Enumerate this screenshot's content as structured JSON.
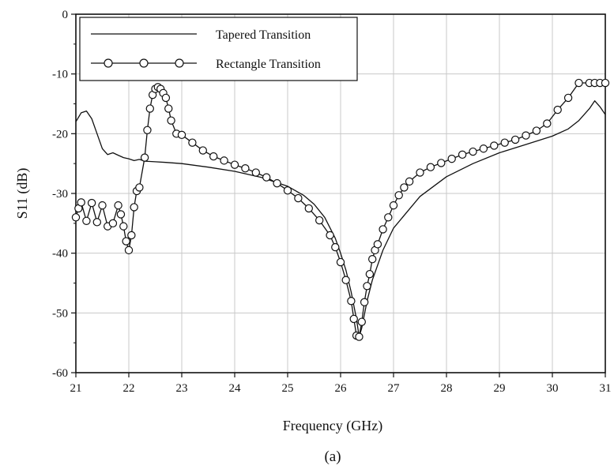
{
  "chart_data": {
    "type": "line",
    "xlabel": "Frequency (GHz)",
    "ylabel": "S11 (dB)",
    "caption": "(a)",
    "xlim": [
      21,
      31
    ],
    "ylim": [
      -60,
      0
    ],
    "xticks": [
      21,
      22,
      23,
      24,
      25,
      26,
      27,
      28,
      29,
      30,
      31
    ],
    "yticks": [
      0,
      -10,
      -20,
      -30,
      -40,
      -50,
      -60
    ],
    "grid": true,
    "legend": "top-left",
    "series": [
      {
        "name": "Tapered Transition",
        "marker": "none",
        "x": [
          21.0,
          21.1,
          21.2,
          21.3,
          21.4,
          21.5,
          21.6,
          21.7,
          21.8,
          21.9,
          22.0,
          22.1,
          22.2,
          22.3,
          22.5,
          22.7,
          23.0,
          23.5,
          24.0,
          24.5,
          25.0,
          25.3,
          25.5,
          25.7,
          25.9,
          26.0,
          26.1,
          26.2,
          26.3,
          26.35,
          26.4,
          26.5,
          26.6,
          26.8,
          27.0,
          27.5,
          28.0,
          28.5,
          29.0,
          29.5,
          30.0,
          30.3,
          30.5,
          30.7,
          30.8,
          30.9,
          31.0
        ],
        "y": [
          -18.0,
          -16.5,
          -16.2,
          -17.5,
          -20.0,
          -22.5,
          -23.5,
          -23.2,
          -23.6,
          -24.0,
          -24.2,
          -24.5,
          -24.3,
          -24.6,
          -24.7,
          -24.8,
          -25.0,
          -25.6,
          -26.3,
          -27.3,
          -28.8,
          -30.3,
          -31.8,
          -34.0,
          -37.5,
          -40.0,
          -42.8,
          -46.5,
          -51.0,
          -54.0,
          -52.5,
          -48.0,
          -44.5,
          -39.5,
          -35.8,
          -30.5,
          -27.2,
          -25.0,
          -23.2,
          -21.8,
          -20.4,
          -19.2,
          -17.8,
          -15.8,
          -14.5,
          -15.5,
          -16.8
        ]
      },
      {
        "name": "Rectangle Transition",
        "marker": "circle",
        "x": [
          21.0,
          21.05,
          21.1,
          21.2,
          21.3,
          21.4,
          21.5,
          21.6,
          21.7,
          21.8,
          21.85,
          21.9,
          21.95,
          22.0,
          22.05,
          22.1,
          22.15,
          22.2,
          22.3,
          22.35,
          22.4,
          22.45,
          22.5,
          22.55,
          22.6,
          22.65,
          22.7,
          22.75,
          22.8,
          22.9,
          23.0,
          23.2,
          23.4,
          23.6,
          23.8,
          24.0,
          24.2,
          24.4,
          24.6,
          24.8,
          25.0,
          25.2,
          25.4,
          25.6,
          25.8,
          25.9,
          26.0,
          26.1,
          26.2,
          26.25,
          26.3,
          26.35,
          26.4,
          26.45,
          26.5,
          26.55,
          26.6,
          26.65,
          26.7,
          26.8,
          26.9,
          27.0,
          27.1,
          27.2,
          27.3,
          27.5,
          27.7,
          27.9,
          28.1,
          28.3,
          28.5,
          28.7,
          28.9,
          29.1,
          29.3,
          29.5,
          29.7,
          29.9,
          30.1,
          30.3,
          30.5,
          30.7,
          30.8,
          30.9,
          31.0
        ],
        "y": [
          -34.0,
          -32.5,
          -31.5,
          -34.6,
          -31.6,
          -34.8,
          -32.0,
          -35.5,
          -35.0,
          -32.0,
          -33.5,
          -35.5,
          -38.0,
          -39.5,
          -37.0,
          -32.3,
          -29.6,
          -29.0,
          -24.0,
          -19.4,
          -15.8,
          -13.5,
          -12.5,
          -12.2,
          -12.5,
          -13.2,
          -14.0,
          -15.8,
          -17.8,
          -20.0,
          -20.2,
          -21.5,
          -22.8,
          -23.8,
          -24.5,
          -25.2,
          -25.8,
          -26.5,
          -27.3,
          -28.3,
          -29.5,
          -30.8,
          -32.5,
          -34.5,
          -37.0,
          -39.0,
          -41.5,
          -44.5,
          -48.0,
          -51.0,
          -53.8,
          -54.0,
          -51.5,
          -48.2,
          -45.5,
          -43.5,
          -41.0,
          -39.5,
          -38.5,
          -36.0,
          -34.0,
          -32.0,
          -30.3,
          -29.0,
          -28.0,
          -26.5,
          -25.6,
          -24.9,
          -24.2,
          -23.5,
          -23.0,
          -22.5,
          -22.0,
          -21.5,
          -21.0,
          -20.3,
          -19.5,
          -18.3,
          -16.0,
          -14.0,
          -11.5,
          -11.5,
          -11.5,
          -11.5,
          -11.5
        ]
      }
    ]
  }
}
